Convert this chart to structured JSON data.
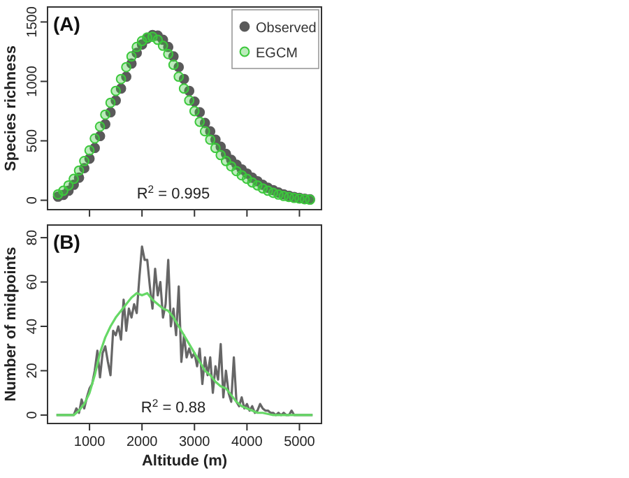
{
  "chart_data": [
    {
      "type": "scatter",
      "ylabel": "Species richness",
      "annotations": [
        "(A)",
        "R$^{2}$ = 0.995"
      ],
      "x": [
        400,
        500,
        600,
        700,
        800,
        900,
        1000,
        1100,
        1200,
        1300,
        1400,
        1500,
        1600,
        1700,
        1800,
        1900,
        2000,
        2100,
        2200,
        2300,
        2400,
        2500,
        2600,
        2700,
        2800,
        2900,
        3000,
        3100,
        3200,
        3300,
        3400,
        3500,
        3600,
        3700,
        3800,
        3900,
        4000,
        4100,
        4200,
        4300,
        4400,
        4500,
        4600,
        4700,
        4800,
        4900,
        5000,
        5100,
        5200
      ],
      "series": [
        {
          "name": "Observed",
          "color": "#5a5a5a",
          "values": [
            30,
            45,
            80,
            130,
            190,
            270,
            350,
            440,
            540,
            640,
            740,
            840,
            940,
            1040,
            1150,
            1240,
            1310,
            1360,
            1390,
            1385,
            1350,
            1290,
            1210,
            1120,
            1020,
            920,
            830,
            740,
            650,
            580,
            510,
            450,
            390,
            340,
            300,
            260,
            225,
            190,
            160,
            130,
            105,
            85,
            65,
            50,
            38,
            28,
            20,
            12,
            8
          ]
        },
        {
          "name": "EGCM",
          "color": "#3cc83c",
          "values": [
            50,
            80,
            125,
            180,
            250,
            330,
            420,
            520,
            620,
            720,
            820,
            920,
            1020,
            1120,
            1210,
            1290,
            1340,
            1370,
            1375,
            1350,
            1300,
            1230,
            1140,
            1040,
            940,
            840,
            750,
            660,
            580,
            510,
            440,
            380,
            330,
            285,
            245,
            210,
            180,
            150,
            125,
            100,
            80,
            62,
            48,
            36,
            27,
            20,
            14,
            9,
            5
          ]
        }
      ],
      "xlim": [
        200,
        5420
      ],
      "xticks": [
        {
          "value": 1000,
          "label": null
        },
        {
          "value": 2000,
          "label": null
        },
        {
          "value": 3000,
          "label": null
        },
        {
          "value": 4000,
          "label": null
        },
        {
          "value": 5000,
          "label": null
        }
      ],
      "ylim": [
        -79,
        1626
      ],
      "yticks": [
        0,
        500,
        1000,
        1500
      ],
      "tick_labels": "y",
      "marker": "circle",
      "legend": "top right",
      "grid": false
    },
    {
      "type": "line",
      "xlabel": "Altitude (m)",
      "ylabel": "Number of midpoints",
      "annotations": [
        "(B)",
        "R$^{2}$ = 0.88"
      ],
      "series": [
        {
          "color": "#666666",
          "x": [
            370,
            700,
            750,
            800,
            850,
            900,
            950,
            1000,
            1050,
            1100,
            1150,
            1200,
            1250,
            1300,
            1350,
            1400,
            1450,
            1500,
            1550,
            1600,
            1650,
            1700,
            1750,
            1800,
            1850,
            1900,
            1950,
            2000,
            2050,
            2100,
            2150,
            2200,
            2250,
            2300,
            2350,
            2400,
            2450,
            2500,
            2550,
            2600,
            2650,
            2700,
            2750,
            2800,
            2850,
            2900,
            2950,
            3000,
            3050,
            3100,
            3150,
            3200,
            3250,
            3300,
            3350,
            3400,
            3450,
            3500,
            3550,
            3600,
            3650,
            3700,
            3750,
            3800,
            3850,
            3900,
            3950,
            4000,
            4050,
            4100,
            4150,
            4200,
            4250,
            4300,
            4350,
            4400,
            4450,
            4500,
            4550,
            4600,
            4650,
            4700,
            4750,
            4800,
            4850,
            4900,
            5250
          ],
          "values": [
            0,
            0,
            3,
            1,
            7,
            3,
            8,
            12,
            14,
            20,
            29,
            17,
            28,
            31,
            24,
            18,
            38,
            36,
            40,
            34,
            52,
            38,
            48,
            44,
            50,
            46,
            62,
            76,
            70,
            70,
            58,
            48,
            66,
            54,
            60,
            44,
            50,
            70,
            40,
            48,
            36,
            58,
            24,
            36,
            26,
            30,
            26,
            28,
            22,
            30,
            14,
            26,
            18,
            26,
            10,
            22,
            16,
            32,
            8,
            20,
            10,
            6,
            26,
            6,
            4,
            8,
            3,
            5,
            2,
            4,
            1,
            2,
            5,
            3,
            2,
            2,
            1,
            1,
            0,
            1,
            0,
            1,
            0,
            0,
            2,
            0,
            0
          ]
        },
        {
          "color": "#66d866",
          "x": [
            370,
            700,
            800,
            900,
            1000,
            1100,
            1200,
            1300,
            1400,
            1500,
            1600,
            1700,
            1800,
            1900,
            2000,
            2100,
            2200,
            2300,
            2400,
            2500,
            2600,
            2700,
            2800,
            2900,
            3000,
            3100,
            3200,
            3300,
            3400,
            3500,
            3600,
            3700,
            3800,
            3900,
            4000,
            4100,
            4200,
            4300,
            4500,
            5250
          ],
          "values": [
            0,
            0,
            2,
            5,
            10,
            18,
            28,
            35,
            40,
            44,
            47,
            50,
            53,
            55,
            54,
            55,
            52,
            50,
            48,
            47,
            44,
            40,
            36,
            32,
            28,
            24,
            20,
            18,
            15,
            13,
            12,
            9,
            6,
            4,
            3,
            2,
            1,
            1,
            0,
            0
          ]
        }
      ],
      "xlim": [
        200,
        5420
      ],
      "xticks": [
        1000,
        2000,
        3000,
        4000,
        5000
      ],
      "ylim": [
        -3.8,
        85.7
      ],
      "yticks": [
        0,
        20,
        40,
        60,
        80
      ],
      "marker": "none",
      "legend": false,
      "grid": false
    }
  ]
}
